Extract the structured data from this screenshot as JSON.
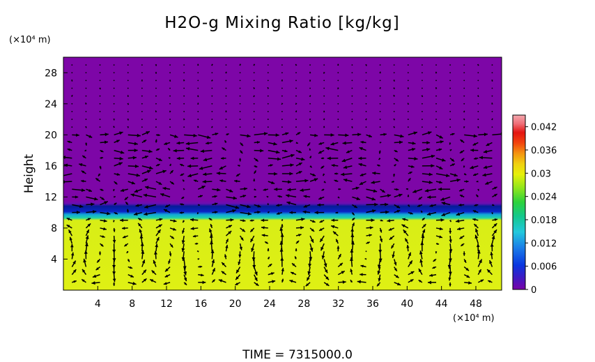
{
  "chart_data": {
    "type": "heatmap",
    "title": "H2O-g Mixing Ratio [kg/kg]",
    "ylabel": "Height",
    "y_unit": "(×10⁴ m)",
    "x_unit": "(×10⁴ m)",
    "footer": "TIME  =  7315000.0",
    "xlim": [
      0,
      51
    ],
    "ylim": [
      0,
      30
    ],
    "x_ticks": [
      4,
      8,
      12,
      16,
      20,
      24,
      28,
      32,
      36,
      40,
      44,
      48
    ],
    "y_ticks": [
      4,
      8,
      12,
      16,
      20,
      24,
      28
    ],
    "colorbar": {
      "range": [
        0,
        0.045
      ],
      "ticks": [
        {
          "label": "0",
          "value": 0
        },
        {
          "label": "0.006",
          "value": 0.006
        },
        {
          "label": "0.012",
          "value": 0.012
        },
        {
          "label": "0.018",
          "value": 0.018
        },
        {
          "label": "0.024",
          "value": 0.024
        },
        {
          "label": "0.03",
          "value": 0.03
        },
        {
          "label": "0.036",
          "value": 0.036
        },
        {
          "label": "0.042",
          "value": 0.042
        }
      ],
      "colors": [
        "#7a02a8",
        "#3d1bc4",
        "#0a36e0",
        "#1b7ee8",
        "#22c8dc",
        "#14c88c",
        "#2cd23c",
        "#8ee61c",
        "#e6f00a",
        "#f0d010",
        "#f49410",
        "#f2440e",
        "#e41410",
        "#ef6e78",
        "#f4a8ae"
      ]
    },
    "field_bands": [
      {
        "from": 0,
        "to": 9.3,
        "value": 0.029,
        "color": "#dcf012"
      },
      {
        "from": 9.3,
        "to": 10.0,
        "value": 0.018,
        "color": "#1bc9b8"
      },
      {
        "from": 10.0,
        "to": 11.2,
        "value": 0.005,
        "color": "#0b26c8"
      },
      {
        "from": 11.2,
        "to": 30,
        "value": 0.0,
        "color": "#7d06a7"
      }
    ],
    "vectors": "wind vector field overlay (arrows) on a regular grid"
  }
}
